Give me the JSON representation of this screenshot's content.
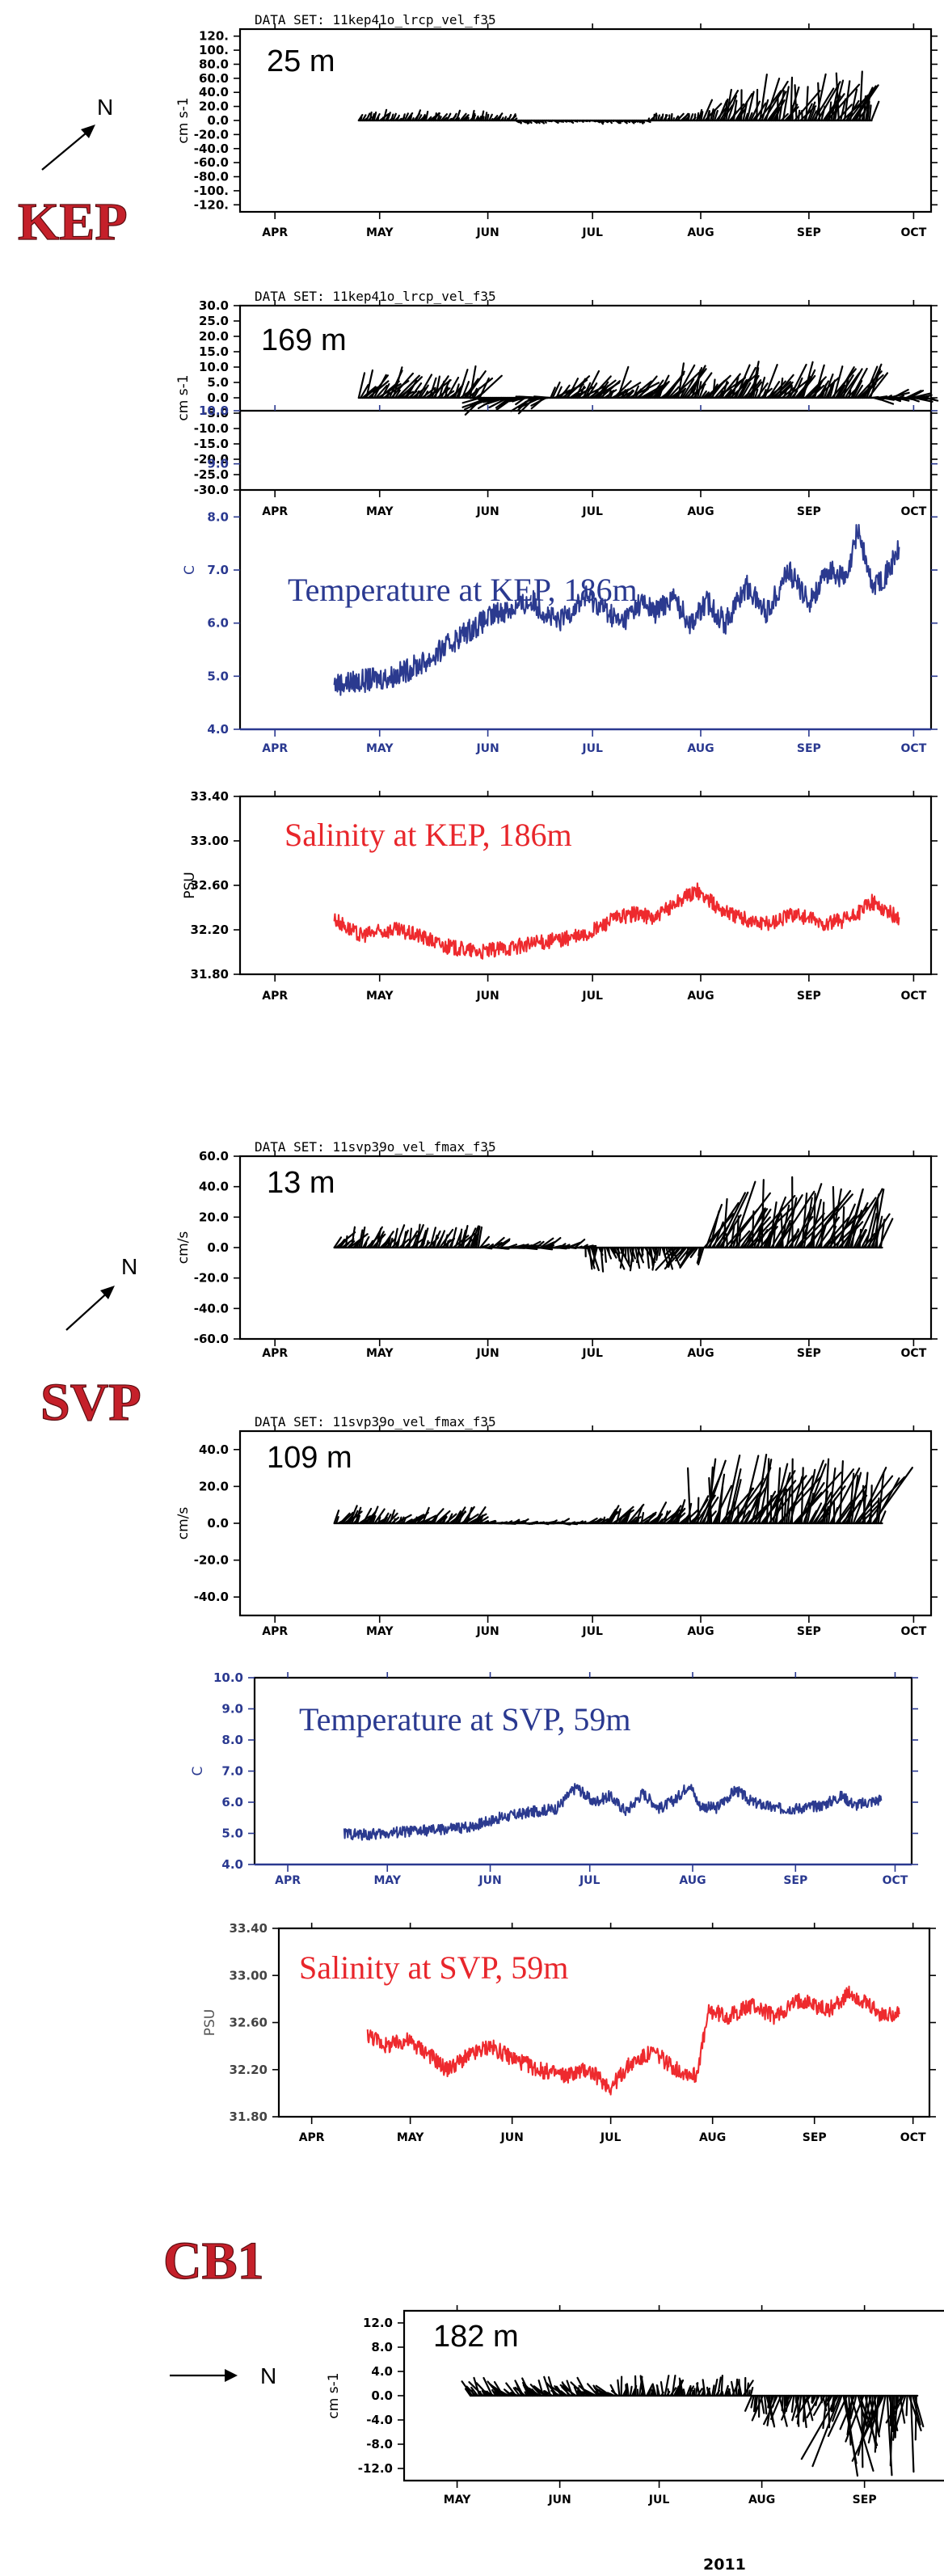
{
  "stations": [
    {
      "name": "KEP"
    },
    {
      "name": "SVP"
    },
    {
      "name": "CB1"
    }
  ],
  "north_label": "N",
  "year_label": "2011",
  "chart_data": [
    {
      "type": "line",
      "kind": "stick",
      "dataset": "DATA SET: 11kep41o_lrcp_vel_f35",
      "depth_label": "25 m",
      "ylabel": "cm s-1",
      "ylim": [
        -130,
        130
      ],
      "yticks": [
        "120.",
        "100.",
        "80.0",
        "60.0",
        "40.0",
        "20.0",
        "0.0",
        "-20.0",
        "-40.0",
        "-60.0",
        "-80.0",
        "-100.",
        "-120."
      ],
      "ytick_values": [
        120,
        100,
        80,
        60,
        40,
        20,
        0,
        -20,
        -40,
        -60,
        -80,
        -100,
        -120
      ],
      "months": [
        "APR",
        "MAY",
        "JUN",
        "JUL",
        "AUG",
        "SEP",
        "OCT"
      ],
      "month_days": [
        91,
        121,
        152,
        182,
        213,
        244,
        274
      ],
      "segments": [
        {
          "day0": 115,
          "day1": 160,
          "speed": 12,
          "dir": 30
        },
        {
          "day0": 160,
          "day1": 198,
          "speed": 5,
          "dir": 120
        },
        {
          "day0": 198,
          "day1": 212,
          "speed": 10,
          "dir": 25
        },
        {
          "day0": 212,
          "day1": 230,
          "speed": 40,
          "dir": 22
        },
        {
          "day0": 230,
          "day1": 262,
          "speed": 52,
          "dir": 22
        }
      ]
    },
    {
      "type": "line",
      "kind": "stick",
      "dataset": "DATA SET: 11kep41o_lrcp_vel_f35",
      "depth_label": "169 m",
      "ylabel": "cm s-1",
      "ylim": [
        -30,
        30
      ],
      "yticks": [
        "30.0",
        "25.0",
        "20.0",
        "15.0",
        "10.0",
        "5.0",
        "0.0",
        "-5.0",
        "-10.0",
        "-15.0",
        "-20.0",
        "-25.0",
        "-30.0"
      ],
      "ytick_values": [
        30,
        25,
        20,
        15,
        10,
        5,
        0,
        -5,
        -10,
        -15,
        -20,
        -25,
        -30
      ],
      "months": [
        "APR",
        "MAY",
        "JUN",
        "JUL",
        "AUG",
        "SEP",
        "OCT"
      ],
      "month_days": [
        91,
        121,
        152,
        182,
        213,
        244,
        274
      ],
      "segments": [
        {
          "day0": 115,
          "day1": 150,
          "speed": 8,
          "dir": 35
        },
        {
          "day0": 150,
          "day1": 170,
          "speed": 7,
          "dir": 250
        },
        {
          "day0": 170,
          "day1": 200,
          "speed": 8,
          "dir": 40
        },
        {
          "day0": 200,
          "day1": 262,
          "speed": 9,
          "dir": 30
        },
        {
          "day0": 262,
          "day1": 278,
          "speed": 5,
          "dir": 85
        }
      ]
    },
    {
      "type": "line",
      "kind": "series",
      "title": "Temperature at KEP,  186m",
      "ylabel": "C",
      "ylim": [
        4.0,
        10.0
      ],
      "yticks": [
        "10.0",
        "9.0",
        "8.0",
        "7.0",
        "6.0",
        "5.0",
        "4.0"
      ],
      "ytick_values": [
        10,
        9,
        8,
        7,
        6,
        5,
        4
      ],
      "months": [
        "APR",
        "MAY",
        "JUN",
        "JUL",
        "AUG",
        "SEP",
        "OCT"
      ],
      "month_days": [
        91,
        121,
        152,
        182,
        213,
        244,
        274
      ],
      "day_range": [
        81,
        279
      ],
      "x_start": 108,
      "x_end": 270,
      "keypoints": [
        [
          108,
          4.85
        ],
        [
          115,
          4.9
        ],
        [
          125,
          5.0
        ],
        [
          135,
          5.3
        ],
        [
          145,
          5.8
        ],
        [
          155,
          6.2
        ],
        [
          165,
          6.4
        ],
        [
          172,
          6.0
        ],
        [
          180,
          6.5
        ],
        [
          185,
          6.3
        ],
        [
          190,
          6.0
        ],
        [
          196,
          6.4
        ],
        [
          200,
          6.2
        ],
        [
          205,
          6.5
        ],
        [
          210,
          6.0
        ],
        [
          215,
          6.4
        ],
        [
          220,
          6.0
        ],
        [
          226,
          6.7
        ],
        [
          232,
          6.2
        ],
        [
          238,
          7.0
        ],
        [
          244,
          6.4
        ],
        [
          250,
          7.0
        ],
        [
          255,
          6.8
        ],
        [
          258,
          7.8
        ],
        [
          262,
          6.7
        ],
        [
          266,
          6.9
        ],
        [
          270,
          7.4
        ]
      ],
      "noise": 0.22
    },
    {
      "type": "line",
      "kind": "series",
      "title": "Salinity at KEP, 186m",
      "ylabel": "PSU",
      "ylim": [
        31.8,
        33.4
      ],
      "yticks": [
        "33.40",
        "33.00",
        "32.60",
        "32.20",
        "31.80"
      ],
      "ytick_values": [
        33.4,
        33.0,
        32.6,
        32.2,
        31.8
      ],
      "months": [
        "APR",
        "MAY",
        "JUN",
        "JUL",
        "AUG",
        "SEP",
        "OCT"
      ],
      "month_days": [
        91,
        121,
        152,
        182,
        213,
        244,
        274
      ],
      "day_range": [
        81,
        279
      ],
      "x_start": 108,
      "x_end": 270,
      "keypoints": [
        [
          108,
          32.3
        ],
        [
          115,
          32.15
        ],
        [
          125,
          32.2
        ],
        [
          132,
          32.15
        ],
        [
          140,
          32.05
        ],
        [
          150,
          32.0
        ],
        [
          160,
          32.05
        ],
        [
          170,
          32.1
        ],
        [
          180,
          32.15
        ],
        [
          188,
          32.3
        ],
        [
          195,
          32.35
        ],
        [
          200,
          32.3
        ],
        [
          206,
          32.45
        ],
        [
          212,
          32.55
        ],
        [
          218,
          32.4
        ],
        [
          225,
          32.3
        ],
        [
          232,
          32.25
        ],
        [
          240,
          32.35
        ],
        [
          248,
          32.25
        ],
        [
          256,
          32.3
        ],
        [
          262,
          32.45
        ],
        [
          270,
          32.3
        ]
      ],
      "noise": 0.07
    },
    {
      "type": "line",
      "kind": "stick",
      "dataset": "DATA SET: 11svp39o_vel_fmax_f35",
      "depth_label": "13 m",
      "ylabel": "cm/s",
      "ylim": [
        -60,
        60
      ],
      "yticks": [
        "60.0",
        "40.0",
        "20.0",
        "0.0",
        "-20.0",
        "-40.0",
        "-60.0"
      ],
      "ytick_values": [
        60,
        40,
        20,
        0,
        -20,
        -40,
        -60
      ],
      "months": [
        "APR",
        "MAY",
        "JUN",
        "JUL",
        "AUG",
        "SEP",
        "OCT"
      ],
      "month_days": [
        91,
        121,
        152,
        182,
        213,
        244,
        274
      ],
      "segments": [
        {
          "day0": 108,
          "day1": 150,
          "speed": 12,
          "dir": 30
        },
        {
          "day0": 150,
          "day1": 180,
          "speed": 8,
          "dir": 75
        },
        {
          "day0": 180,
          "day1": 205,
          "speed": 12,
          "dir": 170
        },
        {
          "day0": 205,
          "day1": 214,
          "speed": 15,
          "dir": 210
        },
        {
          "day0": 214,
          "day1": 265,
          "speed": 35,
          "dir": 22
        }
      ]
    },
    {
      "type": "line",
      "kind": "stick",
      "dataset": "DATA SET: 11svp39o_vel_fmax_f35",
      "depth_label": "109 m",
      "ylabel": "cm/s",
      "ylim": [
        -50,
        50
      ],
      "yticks": [
        "40.0",
        "20.0",
        "0.0",
        "-20.0",
        "-40.0"
      ],
      "ytick_values": [
        40,
        20,
        0,
        -20,
        -40
      ],
      "months": [
        "APR",
        "MAY",
        "JUN",
        "JUL",
        "AUG",
        "SEP",
        "OCT"
      ],
      "month_days": [
        91,
        121,
        152,
        182,
        213,
        244,
        274
      ],
      "segments": [
        {
          "day0": 108,
          "day1": 150,
          "speed": 8,
          "dir": 40
        },
        {
          "day0": 150,
          "day1": 185,
          "speed": 4,
          "dir": 80
        },
        {
          "day0": 185,
          "day1": 210,
          "speed": 10,
          "dir": 35
        },
        {
          "day0": 210,
          "day1": 265,
          "speed": 28,
          "dir": 22
        }
      ]
    },
    {
      "type": "line",
      "kind": "series",
      "title": "Temperature at SVP, 59m",
      "ylabel": "C",
      "ylim": [
        4.0,
        10.0
      ],
      "yticks": [
        "10.0",
        "9.0",
        "8.0",
        "7.0",
        "6.0",
        "5.0",
        "4.0"
      ],
      "ytick_values": [
        10,
        9,
        8,
        7,
        6,
        5,
        4
      ],
      "months": [
        "APR",
        "MAY",
        "JUN",
        "JUL",
        "AUG",
        "SEP",
        "OCT"
      ],
      "month_days": [
        91,
        121,
        152,
        182,
        213,
        244,
        274
      ],
      "day_range": [
        81,
        279
      ],
      "x_start": 108,
      "x_end": 270,
      "keypoints": [
        [
          108,
          5.0
        ],
        [
          115,
          4.95
        ],
        [
          125,
          5.05
        ],
        [
          135,
          5.1
        ],
        [
          145,
          5.2
        ],
        [
          155,
          5.5
        ],
        [
          165,
          5.7
        ],
        [
          172,
          5.8
        ],
        [
          178,
          6.5
        ],
        [
          183,
          6.0
        ],
        [
          188,
          6.2
        ],
        [
          193,
          5.7
        ],
        [
          198,
          6.3
        ],
        [
          203,
          5.8
        ],
        [
          208,
          6.1
        ],
        [
          212,
          6.6
        ],
        [
          215,
          5.9
        ],
        [
          220,
          5.8
        ],
        [
          226,
          6.4
        ],
        [
          231,
          6.0
        ],
        [
          238,
          5.8
        ],
        [
          244,
          5.8
        ],
        [
          252,
          5.9
        ],
        [
          258,
          6.2
        ],
        [
          262,
          5.9
        ],
        [
          270,
          6.1
        ]
      ],
      "noise": 0.18
    },
    {
      "type": "line",
      "kind": "series",
      "title": "Salinity at SVP, 59m",
      "ylabel": "PSU",
      "ylim": [
        31.8,
        33.4
      ],
      "yticks": [
        "33.40",
        "33.00",
        "32.60",
        "32.20",
        "31.80"
      ],
      "ytick_values": [
        33.4,
        33.0,
        32.6,
        32.2,
        31.8
      ],
      "months": [
        "APR",
        "MAY",
        "JUN",
        "JUL",
        "AUG",
        "SEP",
        "OCT"
      ],
      "month_days": [
        91,
        121,
        152,
        182,
        213,
        244,
        274
      ],
      "day_range": [
        81,
        279
      ],
      "x_start": 108,
      "x_end": 270,
      "keypoints": [
        [
          108,
          32.5
        ],
        [
          114,
          32.4
        ],
        [
          120,
          32.45
        ],
        [
          126,
          32.35
        ],
        [
          132,
          32.2
        ],
        [
          138,
          32.3
        ],
        [
          145,
          32.4
        ],
        [
          152,
          32.3
        ],
        [
          160,
          32.2
        ],
        [
          168,
          32.15
        ],
        [
          175,
          32.2
        ],
        [
          182,
          32.05
        ],
        [
          188,
          32.25
        ],
        [
          195,
          32.35
        ],
        [
          202,
          32.2
        ],
        [
          208,
          32.15
        ],
        [
          212,
          32.7
        ],
        [
          218,
          32.65
        ],
        [
          225,
          32.75
        ],
        [
          232,
          32.65
        ],
        [
          240,
          32.8
        ],
        [
          248,
          32.7
        ],
        [
          255,
          32.85
        ],
        [
          260,
          32.75
        ],
        [
          265,
          32.65
        ],
        [
          270,
          32.7
        ]
      ],
      "noise": 0.07
    },
    {
      "type": "line",
      "kind": "stick",
      "depth_label": "182 m",
      "ylabel": "cm s-1",
      "ylim": [
        -14,
        14
      ],
      "yticks": [
        "12.0",
        "8.0",
        "4.0",
        "0.0",
        "-4.0",
        "-8.0",
        "-12.0"
      ],
      "ytick_values": [
        12,
        8,
        4,
        0,
        -4,
        -8,
        -12
      ],
      "months": [
        "MAY",
        "JUN",
        "JUL",
        "AUG",
        "SEP"
      ],
      "month_days": [
        121,
        152,
        182,
        213,
        244
      ],
      "segments": [
        {
          "day0": 125,
          "day1": 170,
          "speed": 2.5,
          "dir": 320
        },
        {
          "day0": 170,
          "day1": 210,
          "speed": 2.5,
          "dir": 10
        },
        {
          "day0": 210,
          "day1": 236,
          "speed": 4,
          "dir": 190
        },
        {
          "day0": 236,
          "day1": 260,
          "speed": 10,
          "dir": 185
        }
      ]
    }
  ]
}
